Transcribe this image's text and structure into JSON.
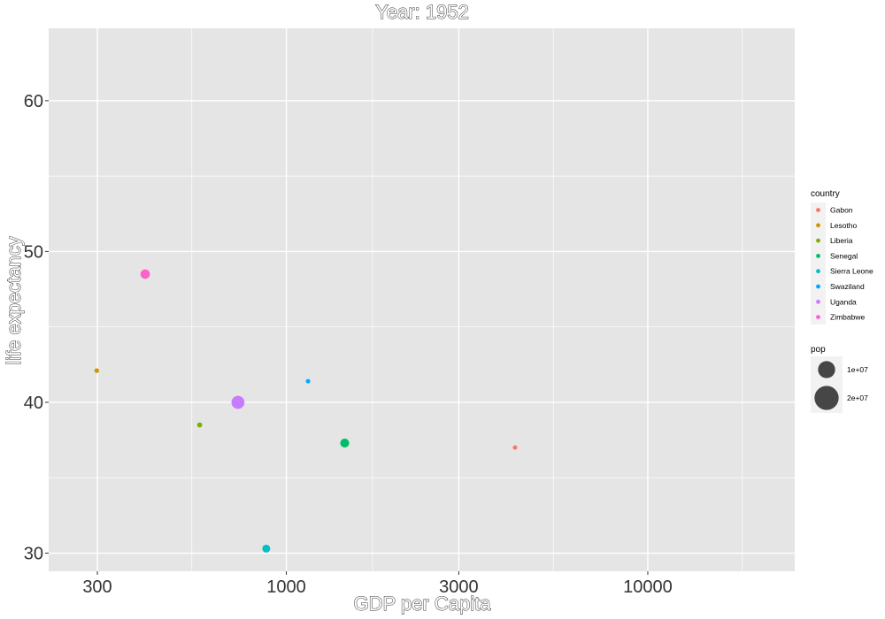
{
  "chart_data": {
    "type": "scatter",
    "title": "Year: 1952",
    "xlabel": "GDP per Capita",
    "ylabel": "life expectancy",
    "x_scale": "log10",
    "xlim": [
      220,
      25500
    ],
    "ylim": [
      28.8,
      64.8
    ],
    "x_ticks": [
      300,
      1000,
      3000,
      10000
    ],
    "x_tick_labels": [
      "300",
      "1000",
      "3000",
      "10000"
    ],
    "y_ticks": [
      30,
      40,
      50,
      60
    ],
    "y_tick_labels": [
      "30",
      "40",
      "50",
      "60"
    ],
    "grid": true,
    "points": [
      {
        "country": "Gabon",
        "x": 4293,
        "y": 37.0,
        "pop": 420702,
        "color": "#F8766D"
      },
      {
        "country": "Lesotho",
        "x": 298.8,
        "y": 42.1,
        "pop": 748747,
        "color": "#CD9600"
      },
      {
        "country": "Liberia",
        "x": 575.6,
        "y": 38.5,
        "pop": 863308,
        "color": "#7CAE00"
      },
      {
        "country": "Senegal",
        "x": 1450.4,
        "y": 37.3,
        "pop": 2755589,
        "color": "#00BE67"
      },
      {
        "country": "Sierra Leone",
        "x": 879.8,
        "y": 30.3,
        "pop": 2143249,
        "color": "#00BFC4"
      },
      {
        "country": "Swaziland",
        "x": 1148.4,
        "y": 41.4,
        "pop": 290243,
        "color": "#00A9FF"
      },
      {
        "country": "Uganda",
        "x": 734.8,
        "y": 40.0,
        "pop": 5824797,
        "color": "#C77CFF"
      },
      {
        "country": "Zimbabwe",
        "x": 406.9,
        "y": 48.5,
        "pop": 3080907,
        "color": "#FF61CC"
      }
    ],
    "legend_position": "right",
    "legend_country_title": "country",
    "legend_pop_title": "pop",
    "legend_pop_breaks": [
      {
        "label": "1e+07",
        "value": 10000000
      },
      {
        "label": "2e+07",
        "value": 20000000
      }
    ],
    "panel_background": "#E5E5E5",
    "grid_color": "#FFFFFF"
  }
}
